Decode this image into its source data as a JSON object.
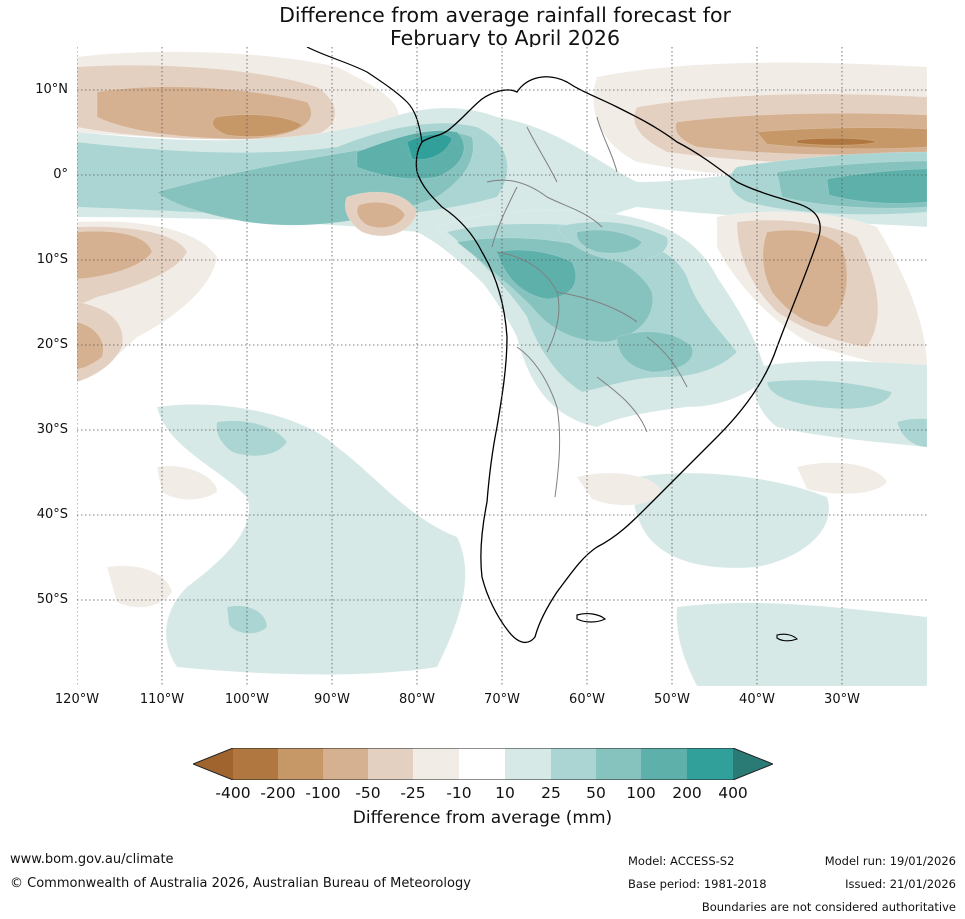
{
  "title": {
    "line1": "Difference from average rainfall forecast for",
    "line2": "February to April 2026"
  },
  "map": {
    "latitude_labels": [
      "10°N",
      "0°",
      "10°S",
      "20°S",
      "30°S",
      "40°S",
      "50°S"
    ],
    "longitude_labels": [
      "120°W",
      "110°W",
      "100°W",
      "90°W",
      "80°W",
      "70°W",
      "60°W",
      "50°W",
      "40°W",
      "30°W"
    ],
    "colors": {
      "c_m400": "#a0652f",
      "c_m200": "#b07840",
      "c_m100": "#c69868",
      "c_m50": "#d5b192",
      "c_m25": "#e4d0c0",
      "c_m10": "#f1ece6",
      "c_0": "#ffffff",
      "c_p10": "#d6e9e6",
      "c_p25": "#abd5d2",
      "c_p50": "#86c3bf",
      "c_p100": "#5eb0ab",
      "c_p200": "#32a09a",
      "c_p400": "#2a7a76",
      "coast": "#000000",
      "border": "#808080",
      "grid": "#555555"
    }
  },
  "legend": {
    "ticks": [
      "-400",
      "-200",
      "-100",
      "-50",
      "-25",
      "-10",
      "10",
      "25",
      "50",
      "100",
      "200",
      "400"
    ],
    "title": "Difference from average (mm)"
  },
  "footer": {
    "website": "www.bom.gov.au/climate",
    "copyright": "© Commonwealth of Australia 2026, Australian Bureau of Meteorology",
    "model": "Model: ACCESS-S2",
    "base_period": "Base period: 1981-2018",
    "model_run": "Model run: 19/01/2026",
    "issued": "Issued: 21/01/2026",
    "disclaimer": "Boundaries are not considered authoritative"
  }
}
